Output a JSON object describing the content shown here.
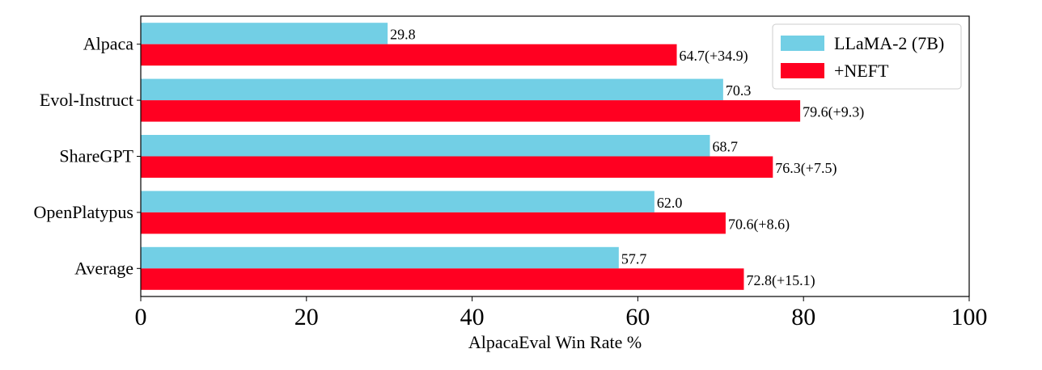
{
  "chart_data": {
    "type": "bar",
    "orientation": "horizontal",
    "title": "",
    "xlabel": "AlpacaEval Win Rate %",
    "ylabel": "",
    "xlim": [
      0,
      100
    ],
    "xticks": [
      0,
      20,
      40,
      60,
      80,
      100
    ],
    "grid": false,
    "legend_position": "top-right",
    "categories": [
      "Alpaca",
      "Evol-Instruct",
      "ShareGPT",
      "OpenPlatypus",
      "Average"
    ],
    "series": [
      {
        "name": "LLaMA-2 (7B)",
        "color": "#72cfe5",
        "values": [
          29.8,
          70.3,
          68.7,
          62.0,
          57.7
        ],
        "labels": [
          "29.8",
          "70.3",
          "68.7",
          "62.0",
          "57.7"
        ]
      },
      {
        "name": "+NEFT",
        "color": "#ff0021",
        "values": [
          64.7,
          79.6,
          76.3,
          70.6,
          72.8
        ],
        "labels": [
          "64.7(+34.9)",
          "79.6(+9.3)",
          "76.3(+7.5)",
          "70.6(+8.6)",
          "72.8(+15.1)"
        ]
      }
    ]
  }
}
